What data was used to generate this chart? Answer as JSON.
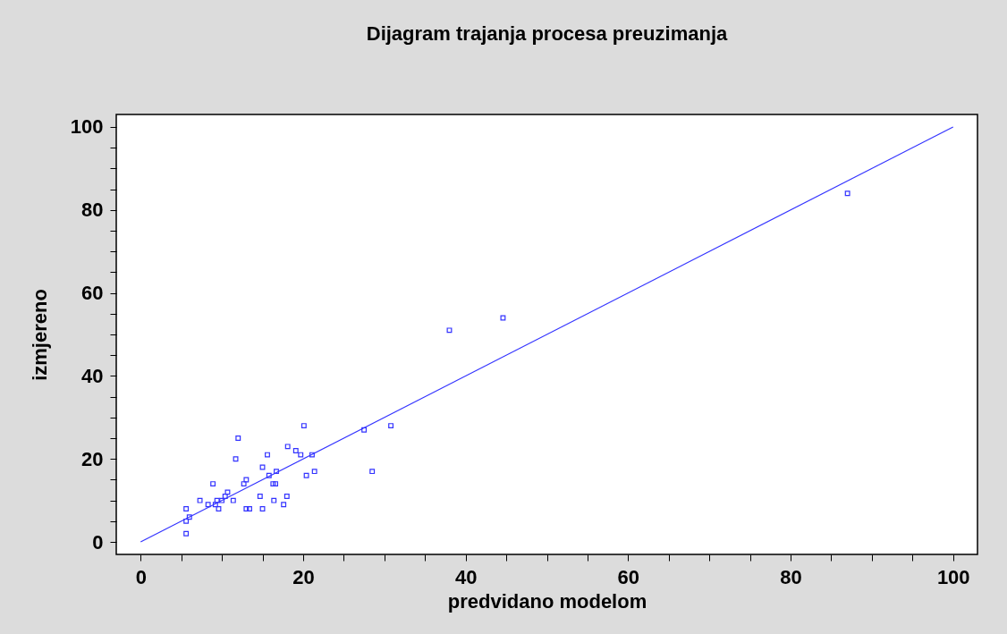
{
  "chart_data": {
    "type": "scatter",
    "title": "Dijagram trajanja procesa preuzimanja",
    "xlabel": "predvidano modelom",
    "ylabel": "izmjereno",
    "xlim": [
      -3,
      103
    ],
    "ylim": [
      -3,
      103
    ],
    "xticks": [
      0,
      {
        "value": 5,
        "label": null
      },
      {
        "value": 10,
        "label": null
      },
      {
        "value": 15,
        "label": null
      },
      20,
      {
        "value": 25,
        "label": null
      },
      {
        "value": 30,
        "label": null
      },
      {
        "value": 35,
        "label": null
      },
      40,
      {
        "value": 45,
        "label": null
      },
      {
        "value": 50,
        "label": null
      },
      {
        "value": 55,
        "label": null
      },
      60,
      {
        "value": 65,
        "label": null
      },
      {
        "value": 70,
        "label": null
      },
      {
        "value": 75,
        "label": null
      },
      80,
      {
        "value": 85,
        "label": null
      },
      {
        "value": 90,
        "label": null
      },
      {
        "value": 95,
        "label": null
      },
      100
    ],
    "yticks": [
      0,
      {
        "value": 5,
        "label": null
      },
      {
        "value": 10,
        "label": null
      },
      {
        "value": 15,
        "label": null
      },
      20,
      {
        "value": 25,
        "label": null
      },
      {
        "value": 30,
        "label": null
      },
      {
        "value": 35,
        "label": null
      },
      40,
      {
        "value": 45,
        "label": null
      },
      {
        "value": 50,
        "label": null
      },
      {
        "value": 55,
        "label": null
      },
      60,
      {
        "value": 65,
        "label": null
      },
      {
        "value": 70,
        "label": null
      },
      {
        "value": 75,
        "label": null
      },
      80,
      {
        "value": 85,
        "label": null
      },
      {
        "value": 90,
        "label": null
      },
      {
        "value": 95,
        "label": null
      },
      100
    ],
    "grid": false,
    "marker": "square",
    "series": [
      {
        "color": "#3333ff",
        "x": [
          20.1,
          27.5,
          30.8,
          12.0,
          18.1,
          19.1,
          19.7,
          21.1,
          15.6,
          11.7,
          15.0,
          16.7,
          21.4,
          28.5,
          20.4,
          15.8,
          13.0,
          12.7,
          8.9,
          16.3,
          16.6,
          10.7,
          10.4,
          14.7,
          18.0,
          7.3,
          9.4,
          10.0,
          11.4,
          16.4,
          8.3,
          9.2,
          17.6,
          5.6,
          9.6,
          13.0,
          13.4,
          15.0,
          6.0,
          5.6,
          5.6,
          38.0,
          44.6,
          87.0
        ],
        "values": [
          28,
          27,
          28,
          25,
          23,
          22,
          21,
          21,
          21,
          20,
          18,
          17,
          17,
          17,
          16,
          16,
          15,
          14,
          14,
          14,
          14,
          12,
          11,
          11,
          11,
          10,
          10,
          10,
          10,
          10,
          9,
          9,
          9,
          8,
          8,
          8,
          8,
          8,
          6,
          5,
          2,
          51,
          54,
          84
        ]
      },
      {
        "type": "line",
        "color": "#3333ff",
        "marker": "none",
        "x": [
          0,
          100
        ],
        "values": [
          0,
          100
        ]
      }
    ]
  }
}
